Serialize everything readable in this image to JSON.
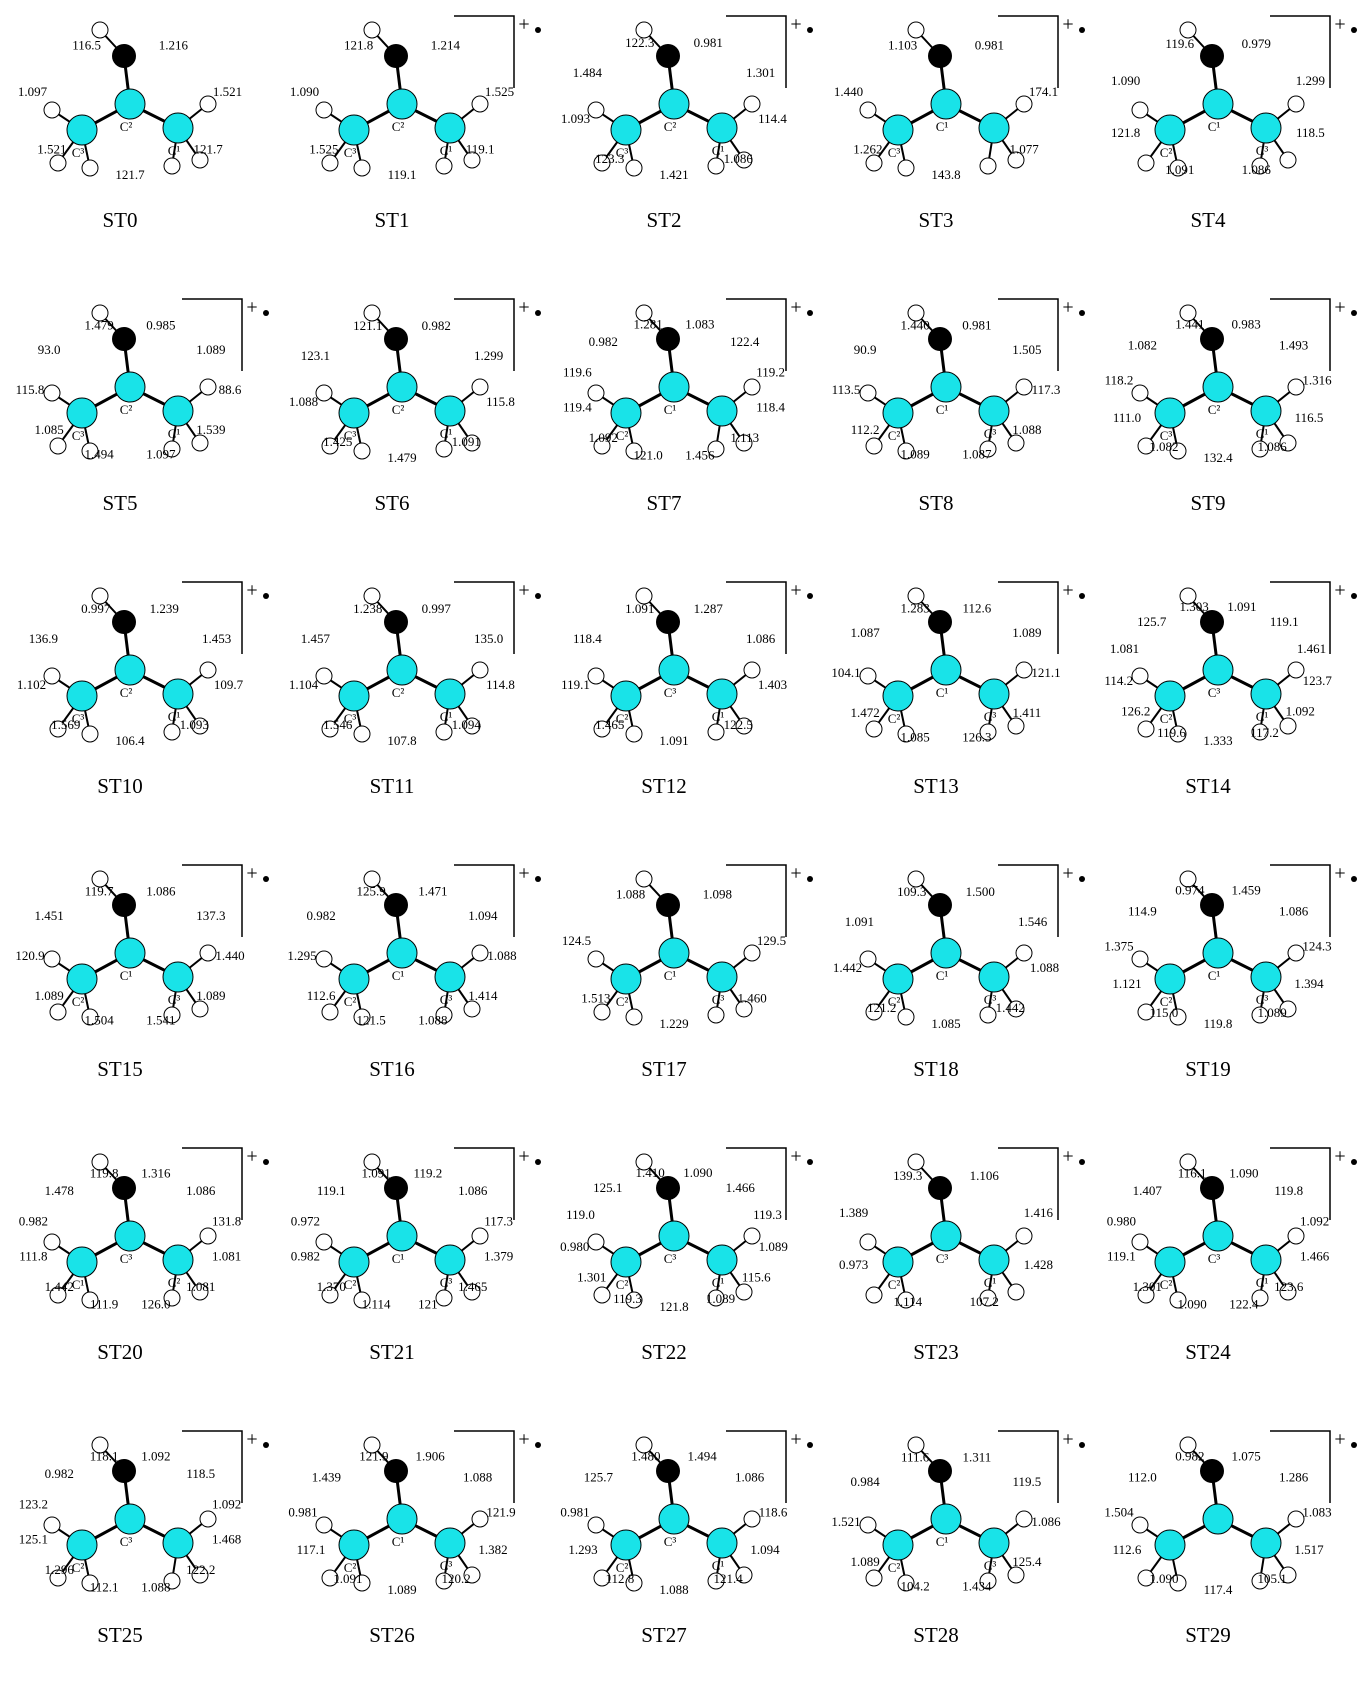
{
  "charge": "+",
  "structures": [
    {
      "name": "ST0",
      "charged": false,
      "atoms": [
        "C³",
        "C²",
        "C¹"
      ],
      "values": [
        "1.216",
        "1.521",
        "121.7",
        "121.7",
        "1.521",
        "1.097",
        "116.5"
      ]
    },
    {
      "name": "ST1",
      "charged": true,
      "atoms": [
        "C³",
        "C²",
        "C¹"
      ],
      "values": [
        "1.214",
        "1.525",
        "119.1",
        "119.1",
        "1.525",
        "1.090",
        "121.8"
      ]
    },
    {
      "name": "ST2",
      "charged": true,
      "atoms": [
        "C³",
        "C²",
        "C¹"
      ],
      "values": [
        "0.981",
        "1.301",
        "114.4",
        "1.086",
        "1.421",
        "123.3",
        "1.093",
        "1.484",
        "122.3"
      ]
    },
    {
      "name": "ST3",
      "charged": true,
      "atoms": [
        "C³",
        "C¹"
      ],
      "values": [
        "0.981",
        "174.1",
        "1.077",
        "143.8",
        "1.262",
        "1.440",
        "1.103"
      ]
    },
    {
      "name": "ST4",
      "charged": true,
      "atoms": [
        "C²",
        "C¹",
        "C³"
      ],
      "values": [
        "0.979",
        "1.299",
        "118.5",
        "1.086",
        "1.091",
        "121.8",
        "1.090",
        "119.6"
      ]
    },
    {
      "name": "ST5",
      "charged": true,
      "atoms": [
        "C³",
        "C²",
        "C¹"
      ],
      "values": [
        "0.985",
        "1.089",
        "88.6",
        "1.539",
        "1.097",
        "1.494",
        "1.085",
        "115.8",
        "93.0",
        "1.479"
      ]
    },
    {
      "name": "ST6",
      "charged": true,
      "atoms": [
        "C³",
        "C²",
        "C¹"
      ],
      "values": [
        "0.982",
        "1.299",
        "115.8",
        "1.091",
        "1.479",
        "1.425",
        "1.088",
        "123.1",
        "121.1"
      ]
    },
    {
      "name": "ST7",
      "charged": true,
      "atoms": [
        "C²",
        "C¹"
      ],
      "values": [
        "1.083",
        "122.4",
        "119.2",
        "118.4",
        "1.113",
        "1.456",
        "121.0",
        "1.092",
        "119.4",
        "119.6",
        "0.982",
        "1.281"
      ]
    },
    {
      "name": "ST8",
      "charged": true,
      "atoms": [
        "C²",
        "C¹",
        "C³"
      ],
      "values": [
        "0.981",
        "1.505",
        "117.3",
        "1.088",
        "1.087",
        "1.089",
        "112.2",
        "113.5",
        "90.9",
        "1.440"
      ]
    },
    {
      "name": "ST9",
      "charged": true,
      "atoms": [
        "C³",
        "C²",
        "C¹"
      ],
      "values": [
        "0.983",
        "1.493",
        "1.316",
        "116.5",
        "1.086",
        "132.4",
        "1.082",
        "111.0",
        "118.2",
        "1.082",
        "1.441"
      ]
    },
    {
      "name": "ST10",
      "charged": true,
      "atoms": [
        "C³",
        "C²",
        "C¹"
      ],
      "values": [
        "1.239",
        "1.453",
        "109.7",
        "1.093",
        "106.4",
        "1.569",
        "1.102",
        "136.9",
        "0.997"
      ]
    },
    {
      "name": "ST11",
      "charged": true,
      "atoms": [
        "C³",
        "C²",
        "C¹"
      ],
      "values": [
        "0.997",
        "135.0",
        "114.8",
        "1.094",
        "107.8",
        "1.546",
        "1.104",
        "1.457",
        "1.238"
      ]
    },
    {
      "name": "ST12",
      "charged": true,
      "atoms": [
        "C²",
        "C³",
        "C¹"
      ],
      "values": [
        "1.287",
        "1.086",
        "1.403",
        "122.5",
        "1.091",
        "1.465",
        "119.1",
        "118.4",
        "1.091"
      ]
    },
    {
      "name": "ST13",
      "charged": true,
      "atoms": [
        "C²",
        "C¹",
        "C³"
      ],
      "values": [
        "112.6",
        "1.089",
        "121.1",
        "1.411",
        "126.3",
        "1.085",
        "1.472",
        "104.1",
        "1.087",
        "1.283"
      ]
    },
    {
      "name": "ST14",
      "charged": true,
      "atoms": [
        "C²",
        "C³",
        "C¹"
      ],
      "values": [
        "1.091",
        "119.1",
        "1.461",
        "123.7",
        "1.092",
        "117.2",
        "1.333",
        "119.6",
        "126.2",
        "114.2",
        "1.081",
        "125.7",
        "1.303"
      ]
    },
    {
      "name": "ST15",
      "charged": true,
      "atoms": [
        "C²",
        "C¹",
        "C³"
      ],
      "values": [
        "1.086",
        "137.3",
        "1.440",
        "1.089",
        "1.541",
        "1.504",
        "1.089",
        "120.9",
        "1.451",
        "119.7"
      ]
    },
    {
      "name": "ST16",
      "charged": true,
      "atoms": [
        "C²",
        "C¹",
        "C³"
      ],
      "values": [
        "1.471",
        "1.094",
        "1.088",
        "1.414",
        "1.088",
        "121.5",
        "112.6",
        "1.295",
        "0.982",
        "125.9"
      ]
    },
    {
      "name": "ST17",
      "charged": true,
      "atoms": [
        "C²",
        "C¹",
        "C³"
      ],
      "values": [
        "1.098",
        "129.5",
        "1.460",
        "1.229",
        "1.513",
        "124.5",
        "1.088"
      ]
    },
    {
      "name": "ST18",
      "charged": true,
      "atoms": [
        "C²",
        "C¹",
        "C³"
      ],
      "values": [
        "1.500",
        "1.546",
        "1.088",
        "1.442",
        "1.085",
        "121.2",
        "1.442",
        "1.091",
        "109.3"
      ]
    },
    {
      "name": "ST19",
      "charged": true,
      "atoms": [
        "C²",
        "C¹",
        "C³"
      ],
      "values": [
        "1.459",
        "1.086",
        "124.3",
        "1.394",
        "1.089",
        "119.8",
        "115.0",
        "1.121",
        "1.375",
        "114.9",
        "0.974"
      ]
    },
    {
      "name": "ST20",
      "charged": true,
      "atoms": [
        "C¹",
        "C³",
        "C²"
      ],
      "values": [
        "1.316",
        "1.086",
        "131.8",
        "1.081",
        "1.081",
        "126.0",
        "111.9",
        "1.442",
        "111.8",
        "0.982",
        "1.478",
        "119.8"
      ]
    },
    {
      "name": "ST21",
      "charged": true,
      "atoms": [
        "C²",
        "C¹",
        "C³"
      ],
      "values": [
        "119.2",
        "1.086",
        "117.3",
        "1.379",
        "1.465",
        "121",
        "1.114",
        "1.370",
        "0.982",
        "0.972",
        "119.1",
        "1.091"
      ]
    },
    {
      "name": "ST22",
      "charged": true,
      "atoms": [
        "C²",
        "C³",
        "C¹"
      ],
      "values": [
        "1.090",
        "1.466",
        "119.3",
        "1.089",
        "115.6",
        "1.089",
        "121.8",
        "119.3",
        "1.301",
        "0.980",
        "119.0",
        "125.1",
        "1.410"
      ]
    },
    {
      "name": "ST23",
      "charged": true,
      "atoms": [
        "C²",
        "C³",
        "C¹"
      ],
      "values": [
        "1.106",
        "1.416",
        "1.428",
        "107.2",
        "1.114",
        "0.973",
        "1.389",
        "139.3"
      ]
    },
    {
      "name": "ST24",
      "charged": true,
      "atoms": [
        "C²",
        "C³",
        "C¹"
      ],
      "values": [
        "1.090",
        "119.8",
        "1.092",
        "1.466",
        "123.6",
        "122.4",
        "1.090",
        "1.301",
        "119.1",
        "0.980",
        "1.407",
        "116.1"
      ]
    },
    {
      "name": "ST25",
      "charged": true,
      "atoms": [
        "C²",
        "C³"
      ],
      "values": [
        "1.092",
        "118.5",
        "1.092",
        "1.468",
        "122.2",
        "1.088",
        "112.1",
        "1.296",
        "125.1",
        "123.2",
        "0.982",
        "118.1"
      ]
    },
    {
      "name": "ST26",
      "charged": true,
      "atoms": [
        "C²",
        "C¹",
        "C³"
      ],
      "values": [
        "1.906",
        "1.088",
        "121.9",
        "1.382",
        "120.2",
        "1.089",
        "1.091",
        "117.1",
        "0.981",
        "1.439",
        "121.9"
      ]
    },
    {
      "name": "ST27",
      "charged": true,
      "atoms": [
        "C²",
        "C³",
        "C¹"
      ],
      "values": [
        "1.494",
        "1.086",
        "118.6",
        "1.094",
        "121.4",
        "1.088",
        "112.8",
        "1.293",
        "0.981",
        "125.7",
        "1.480"
      ]
    },
    {
      "name": "ST28",
      "charged": true,
      "atoms": [
        "C²",
        "C¹",
        "C³"
      ],
      "values": [
        "1.311",
        "119.5",
        "1.086",
        "125.4",
        "1.434",
        "104.2",
        "1.089",
        "1.521",
        "0.984",
        "111.6"
      ]
    },
    {
      "name": "ST29",
      "charged": true,
      "atoms": [],
      "values": [
        "1.075",
        "1.286",
        "1.083",
        "1.517",
        "105.1",
        "117.4",
        "1.090",
        "112.6",
        "1.504",
        "112.0",
        "0.982"
      ]
    }
  ]
}
